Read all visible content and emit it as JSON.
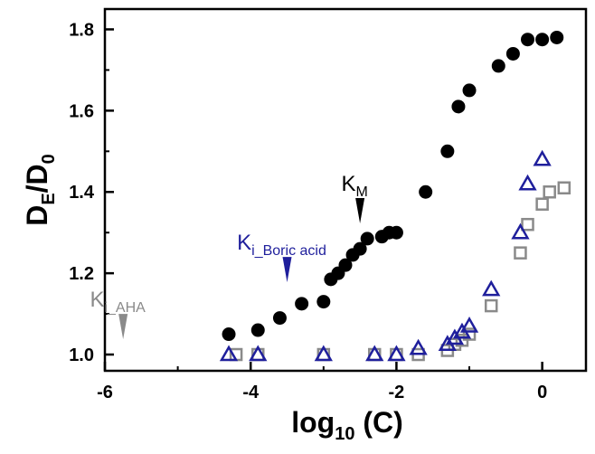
{
  "chart_data": {
    "type": "scatter",
    "xlabel": {
      "main": "log",
      "sub": "10",
      "rest": " (C)"
    },
    "ylabel": {
      "d1": "D",
      "s1": "E",
      "slash": "/",
      "d2": "D",
      "s2": "0"
    },
    "xlim": [
      -6.0,
      0.6
    ],
    "ylim": [
      0.96,
      1.85
    ],
    "xticks": [
      -6,
      -4,
      -2,
      0
    ],
    "xtick_labels": [
      "-6",
      "-4",
      "-2",
      "0"
    ],
    "yticks": [
      1.0,
      1.2,
      1.4,
      1.6,
      1.8
    ],
    "ytick_labels": [
      "1.0",
      "1.2",
      "1.4",
      "1.6",
      "1.8"
    ],
    "grid": false,
    "series": [
      {
        "marker": "filled-circle",
        "color": "#000000",
        "points": [
          {
            "x": -4.3,
            "y": 1.05,
            "err": 0.02
          },
          {
            "x": -3.9,
            "y": 1.06,
            "err": 0.02
          },
          {
            "x": -3.6,
            "y": 1.09,
            "err": 0.015
          },
          {
            "x": -3.3,
            "y": 1.125,
            "err": 0.02
          },
          {
            "x": -3.0,
            "y": 1.13,
            "err": 0.02
          },
          {
            "x": -2.9,
            "y": 1.185,
            "err": 0.02
          },
          {
            "x": -2.8,
            "y": 1.2,
            "err": 0.02
          },
          {
            "x": -2.7,
            "y": 1.22,
            "err": 0.02
          },
          {
            "x": -2.6,
            "y": 1.245,
            "err": 0.02
          },
          {
            "x": -2.5,
            "y": 1.26,
            "err": 0.02
          },
          {
            "x": -2.4,
            "y": 1.285,
            "err": 0.02
          },
          {
            "x": -2.2,
            "y": 1.29,
            "err": 0.025
          },
          {
            "x": -2.1,
            "y": 1.3,
            "err": 0.025
          },
          {
            "x": -2.0,
            "y": 1.3,
            "err": 0.025
          },
          {
            "x": -1.6,
            "y": 1.4,
            "err": 0.03
          },
          {
            "x": -1.3,
            "y": 1.5,
            "err": 0.035
          },
          {
            "x": -1.15,
            "y": 1.61,
            "err": 0.03
          },
          {
            "x": -1.0,
            "y": 1.65,
            "err": 0.025
          },
          {
            "x": -0.6,
            "y": 1.71,
            "err": 0.03
          },
          {
            "x": -0.4,
            "y": 1.74,
            "err": 0.03
          },
          {
            "x": -0.2,
            "y": 1.775,
            "err": 0.04
          },
          {
            "x": 0.0,
            "y": 1.775,
            "err": 0.04
          },
          {
            "x": 0.2,
            "y": 1.78,
            "err": 0.04
          }
        ]
      },
      {
        "marker": "open-triangle",
        "color": "#1f1f9c",
        "points": [
          {
            "x": -4.3,
            "y": 1.0,
            "err": 0.005
          },
          {
            "x": -3.9,
            "y": 1.0,
            "err": 0.005
          },
          {
            "x": -3.0,
            "y": 1.0,
            "err": 0.005
          },
          {
            "x": -2.3,
            "y": 1.0,
            "err": 0.005
          },
          {
            "x": -2.0,
            "y": 1.0,
            "err": 0.005
          },
          {
            "x": -1.7,
            "y": 1.015,
            "err": 0.01
          },
          {
            "x": -1.3,
            "y": 1.025,
            "err": 0.01
          },
          {
            "x": -1.2,
            "y": 1.04,
            "err": 0.015
          },
          {
            "x": -1.1,
            "y": 1.055,
            "err": 0.015
          },
          {
            "x": -1.0,
            "y": 1.07,
            "err": 0.02
          },
          {
            "x": -0.7,
            "y": 1.16,
            "err": 0.02
          },
          {
            "x": -0.3,
            "y": 1.3,
            "err": 0.02
          },
          {
            "x": -0.2,
            "y": 1.42,
            "err": 0.02
          },
          {
            "x": 0.0,
            "y": 1.48,
            "err": 0.025
          }
        ]
      },
      {
        "marker": "open-square",
        "color": "#8a8a8a",
        "points": [
          {
            "x": -4.2,
            "y": 1.0,
            "err": 0.005
          },
          {
            "x": -3.9,
            "y": 1.0,
            "err": 0.005
          },
          {
            "x": -3.0,
            "y": 1.0,
            "err": 0.005
          },
          {
            "x": -2.3,
            "y": 1.0,
            "err": 0.005
          },
          {
            "x": -2.0,
            "y": 1.0,
            "err": 0.005
          },
          {
            "x": -1.7,
            "y": 1.0,
            "err": 0.005
          },
          {
            "x": -1.3,
            "y": 1.01,
            "err": 0.01
          },
          {
            "x": -1.2,
            "y": 1.025,
            "err": 0.015
          },
          {
            "x": -1.1,
            "y": 1.035,
            "err": 0.015
          },
          {
            "x": -1.0,
            "y": 1.05,
            "err": 0.02
          },
          {
            "x": -0.7,
            "y": 1.12,
            "err": 0.025
          },
          {
            "x": -0.3,
            "y": 1.25,
            "err": 0.03
          },
          {
            "x": -0.2,
            "y": 1.32,
            "err": 0.025
          },
          {
            "x": 0.0,
            "y": 1.37,
            "err": 0.03
          },
          {
            "x": 0.1,
            "y": 1.4,
            "err": 0.025
          },
          {
            "x": 0.3,
            "y": 1.41,
            "err": 0.025
          }
        ]
      }
    ],
    "annotations": [
      {
        "main": "K",
        "sub": "M",
        "color": "#000000",
        "x": -2.5,
        "y": 1.385
      },
      {
        "main": "K",
        "sub": "i_Boric acid",
        "color": "#1f1f9c",
        "x": -3.5,
        "y": 1.24
      },
      {
        "main": "K",
        "sub": "i_AHA",
        "color": "#8a8a8a",
        "x": -5.75,
        "y": 1.1
      }
    ]
  }
}
